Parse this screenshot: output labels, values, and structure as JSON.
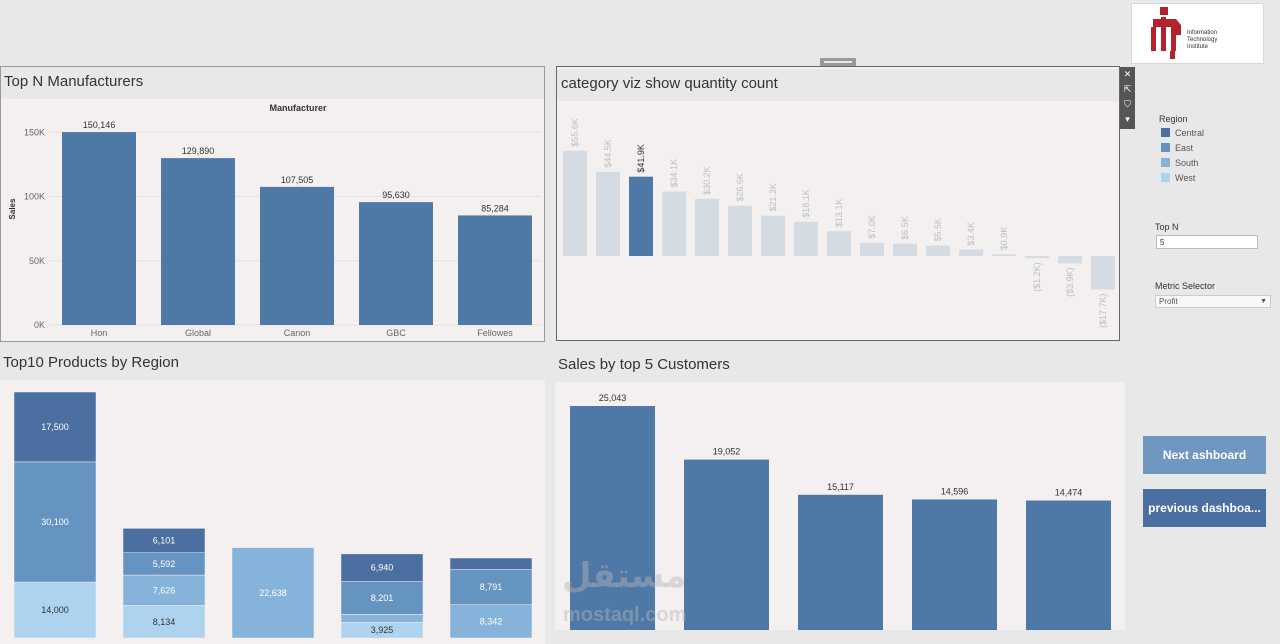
{
  "logo": {
    "line1": "Information",
    "line2": "Technology",
    "line3": "Institute",
    "brand_color": "#b3232b"
  },
  "colors": {
    "bar_blue": "#4e79a7",
    "central": "#4a6fa0",
    "east": "#6594c0",
    "south": "#86b3d9",
    "west": "#aed3ee",
    "category_faded": "#d5dbe3",
    "button": "#6f97c0",
    "button_dark": "#4a6fa0"
  },
  "manufacturers": {
    "title": "Top N Manufacturers",
    "header": "Manufacturer",
    "ylabel": "Sales",
    "chart_data": {
      "type": "bar",
      "categories": [
        "Hon",
        "Global",
        "Canon",
        "GBC",
        "Fellowes"
      ],
      "values": [
        150146,
        129890,
        107505,
        95630,
        85284
      ],
      "data_labels": [
        "150,146",
        "129,890",
        "107,505",
        "95,630",
        "85,284"
      ],
      "yticks": [
        "0K",
        "50K",
        "100K",
        "150K"
      ],
      "ylim": [
        0,
        165000
      ],
      "xlabel": "Manufacturer",
      "ylabel": "Sales"
    }
  },
  "category": {
    "title": "category viz show quantity count",
    "chart_data": {
      "type": "bar",
      "values": [
        55.6,
        44.5,
        41.9,
        34.1,
        30.2,
        26.6,
        21.3,
        18.1,
        13.1,
        7.0,
        6.5,
        5.5,
        3.4,
        0.9,
        -1.2,
        -3.9,
        -17.7
      ],
      "labels": [
        "$55.6K",
        "$44.5K",
        "$41.9K",
        "$34.1K",
        "$30.2K",
        "$26.6K",
        "$21.3K",
        "$18.1K",
        "$13.1K",
        "$7.0K",
        "$6.5K",
        "$5.5K",
        "$3.4K",
        "$0.9K",
        "($1.2K)",
        "($3.9K)",
        "($17.7K)"
      ],
      "highlight_index": 2,
      "ylim": [
        -18,
        60
      ]
    }
  },
  "toolbar": {
    "close": "✕",
    "popout": "⇱",
    "filter": "⛉",
    "more": "▾"
  },
  "legend": {
    "title": "Region",
    "items": [
      "Central",
      "East",
      "South",
      "West"
    ]
  },
  "topn": {
    "label": "Top N",
    "value": "5"
  },
  "metric": {
    "label": "Metric Selector",
    "value": "Profit"
  },
  "buttons": {
    "next": "Next ashboard",
    "previous": "previous dashboa..."
  },
  "products": {
    "title": "Top10 Products by Region",
    "chart_data": {
      "type": "bar",
      "stacked": true,
      "series_order": [
        "West",
        "South",
        "East",
        "Central"
      ],
      "bars": [
        {
          "segments": [
            {
              "region": "West",
              "value": 14000,
              "label": "14,000"
            },
            {
              "region": "South",
              "value": 0,
              "label": ""
            },
            {
              "region": "East",
              "value": 30100,
              "label": "30,100"
            },
            {
              "region": "Central",
              "value": 17500,
              "label": "17,500"
            }
          ]
        },
        {
          "segments": [
            {
              "region": "West",
              "value": 8134,
              "label": "8,134"
            },
            {
              "region": "South",
              "value": 7626,
              "label": "7,626"
            },
            {
              "region": "East",
              "value": 5592,
              "label": "5,592"
            },
            {
              "region": "Central",
              "value": 6101,
              "label": "6,101"
            }
          ]
        },
        {
          "segments": [
            {
              "region": "West",
              "value": 0,
              "label": ""
            },
            {
              "region": "South",
              "value": 22638,
              "label": "22,638"
            },
            {
              "region": "East",
              "value": 0,
              "label": ""
            },
            {
              "region": "Central",
              "value": 0,
              "label": ""
            }
          ]
        },
        {
          "segments": [
            {
              "region": "West",
              "value": 3925,
              "label": "3,925"
            },
            {
              "region": "South",
              "value": 2000,
              "label": ""
            },
            {
              "region": "East",
              "value": 8201,
              "label": "8,201"
            },
            {
              "region": "Central",
              "value": 6940,
              "label": "6,940"
            }
          ]
        },
        {
          "segments": [
            {
              "region": "West",
              "value": 0,
              "label": ""
            },
            {
              "region": "South",
              "value": 8342,
              "label": "8,342"
            },
            {
              "region": "East",
              "value": 8791,
              "label": "8,791"
            },
            {
              "region": "Central",
              "value": 2900,
              "label": ""
            }
          ]
        }
      ],
      "ylim": [
        0,
        64000
      ]
    }
  },
  "customers": {
    "title": "Sales by top 5 Customers",
    "chart_data": {
      "type": "bar",
      "values": [
        25043,
        19052,
        15117,
        14596,
        14474
      ],
      "data_labels": [
        "25,043",
        "19,052",
        "15,117",
        "14,596",
        "14,474"
      ],
      "ylim": [
        0,
        26500
      ]
    }
  },
  "watermark": {
    "text": "مستقل",
    "sub": "mostaql.com"
  }
}
